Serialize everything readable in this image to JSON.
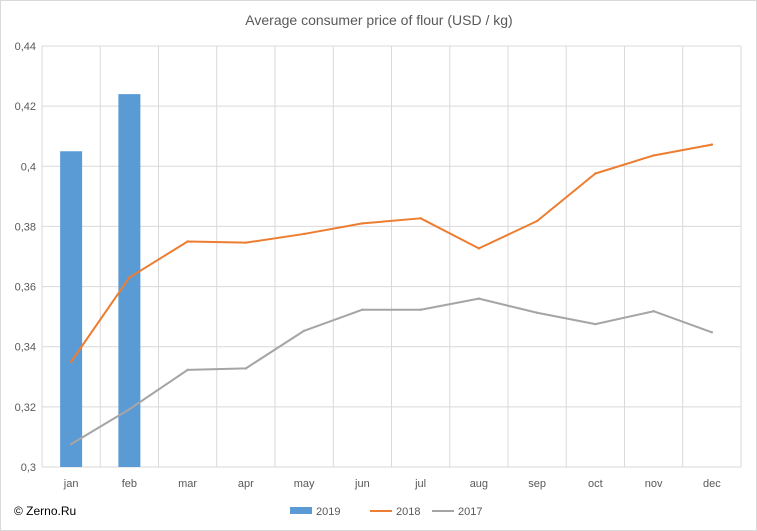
{
  "chart_data": {
    "type": "bar+line",
    "title": "Average consumer price of flour (USD / kg)",
    "xlabel": "",
    "ylabel": "",
    "categories": [
      "jan",
      "feb",
      "mar",
      "apr",
      "may",
      "jun",
      "jul",
      "aug",
      "sep",
      "oct",
      "nov",
      "dec"
    ],
    "ylim": [
      0.3,
      0.44
    ],
    "yticks": [
      "0,3",
      "0,32",
      "0,34",
      "0,36",
      "0,38",
      "0,4",
      "0,42",
      "0,44"
    ],
    "grid": true,
    "legend_position": "bottom",
    "series": [
      {
        "name": "2019",
        "kind": "bar",
        "color": "#5b9bd5",
        "values": [
          0.405,
          0.424,
          null,
          null,
          null,
          null,
          null,
          null,
          null,
          null,
          null,
          null
        ]
      },
      {
        "name": "2018",
        "kind": "line",
        "color": "#ed7d31",
        "values": [
          0.335,
          0.363,
          0.375,
          0.3746,
          0.3775,
          0.381,
          0.3827,
          0.3727,
          0.3818,
          0.3976,
          0.4036,
          0.4072
        ]
      },
      {
        "name": "2017",
        "kind": "line",
        "color": "#a5a5a5",
        "values": [
          0.3076,
          0.3192,
          0.3323,
          0.3328,
          0.3453,
          0.3523,
          0.3523,
          0.356,
          0.3513,
          0.3475,
          0.3518,
          0.3448
        ]
      }
    ]
  },
  "copyright": "© Zerno.Ru"
}
